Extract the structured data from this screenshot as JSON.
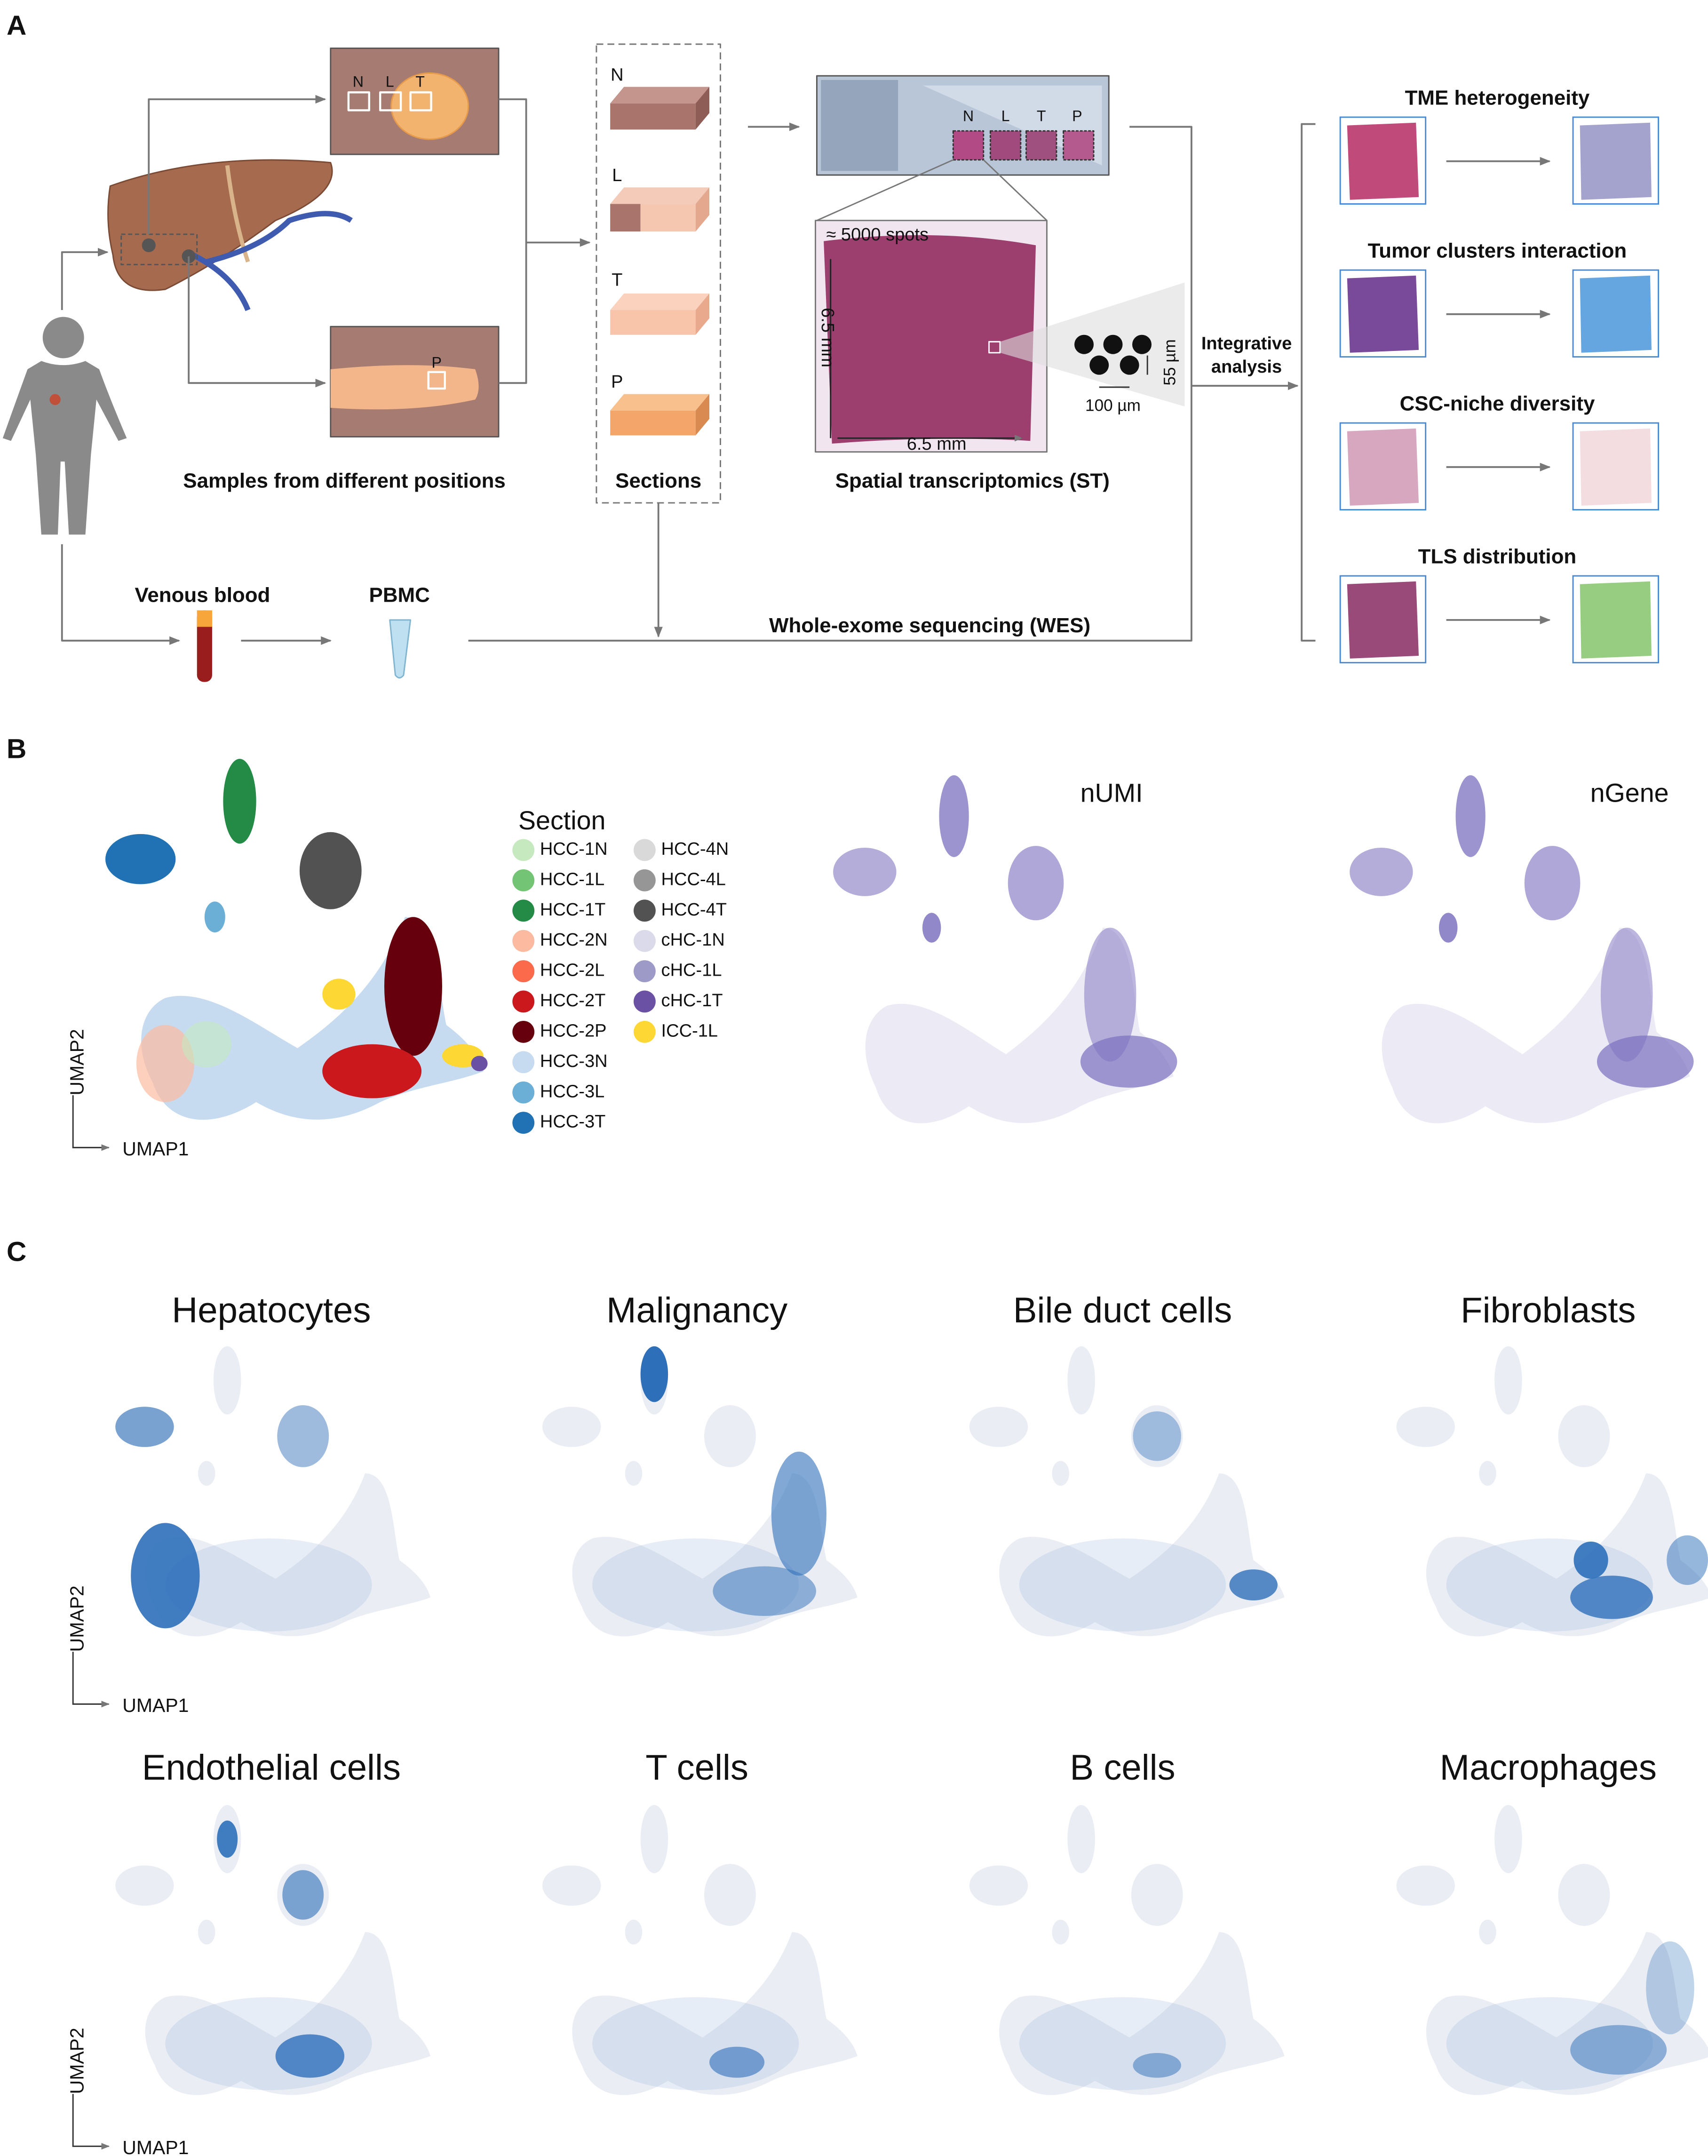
{
  "panel_a": {
    "label": "A",
    "sample_letters": [
      "N",
      "L",
      "T",
      "P"
    ],
    "samples_label": "Samples from different positions",
    "section_letters": [
      "N",
      "L",
      "T",
      "P"
    ],
    "sections_label": "Sections",
    "slide_letters": [
      "N",
      "L",
      "T",
      "P"
    ],
    "st_label": "Spatial transcriptomics (ST)",
    "spots_label": "≈ 5000 spots",
    "height_label": "6.5 mm",
    "width_label": "6.5 mm",
    "spacing_label": "100 µm",
    "diameter_label": "55 µm",
    "integrative_label": [
      "Integrative",
      "analysis"
    ],
    "blood_label": "Venous blood",
    "pbmc_label": "PBMC",
    "wes_label": "Whole-exome sequencing (WES)",
    "outputs": [
      "TME heterogeneity",
      "Tumor clusters interaction",
      "CSC-niche diversity",
      "TLS distribution"
    ]
  },
  "panel_b": {
    "label": "B",
    "legend_title": "Section",
    "sections": [
      {
        "name": "HCC-1N",
        "color": "#c7e9c0"
      },
      {
        "name": "HCC-1L",
        "color": "#74c476"
      },
      {
        "name": "HCC-1T",
        "color": "#238b45"
      },
      {
        "name": "HCC-2N",
        "color": "#fcbba1"
      },
      {
        "name": "HCC-2L",
        "color": "#fb6a4a"
      },
      {
        "name": "HCC-2T",
        "color": "#cb181d"
      },
      {
        "name": "HCC-2P",
        "color": "#67000d"
      },
      {
        "name": "HCC-3N",
        "color": "#c6dbef"
      },
      {
        "name": "HCC-3L",
        "color": "#6baed6"
      },
      {
        "name": "HCC-3T",
        "color": "#2171b5"
      },
      {
        "name": "HCC-4N",
        "color": "#d9d9d9"
      },
      {
        "name": "HCC-4L",
        "color": "#969696"
      },
      {
        "name": "HCC-4T",
        "color": "#525252"
      },
      {
        "name": "cHC-1N",
        "color": "#dadaeb"
      },
      {
        "name": "cHC-1L",
        "color": "#9e9ac8"
      },
      {
        "name": "cHC-1T",
        "color": "#6a51a3"
      },
      {
        "name": "ICC-1L",
        "color": "#fdd835"
      }
    ],
    "feature_titles": [
      "nUMI",
      "nGene"
    ],
    "x_axis": "UMAP1",
    "y_axis": "UMAP2"
  },
  "panel_c": {
    "label": "C",
    "cell_types": [
      "Hepatocytes",
      "Malignancy",
      "Bile duct cells",
      "Fibroblasts",
      "Endothelial cells",
      "T cells",
      "B cells",
      "Macrophages"
    ],
    "x_axis": "UMAP1",
    "y_axis": "UMAP2"
  }
}
